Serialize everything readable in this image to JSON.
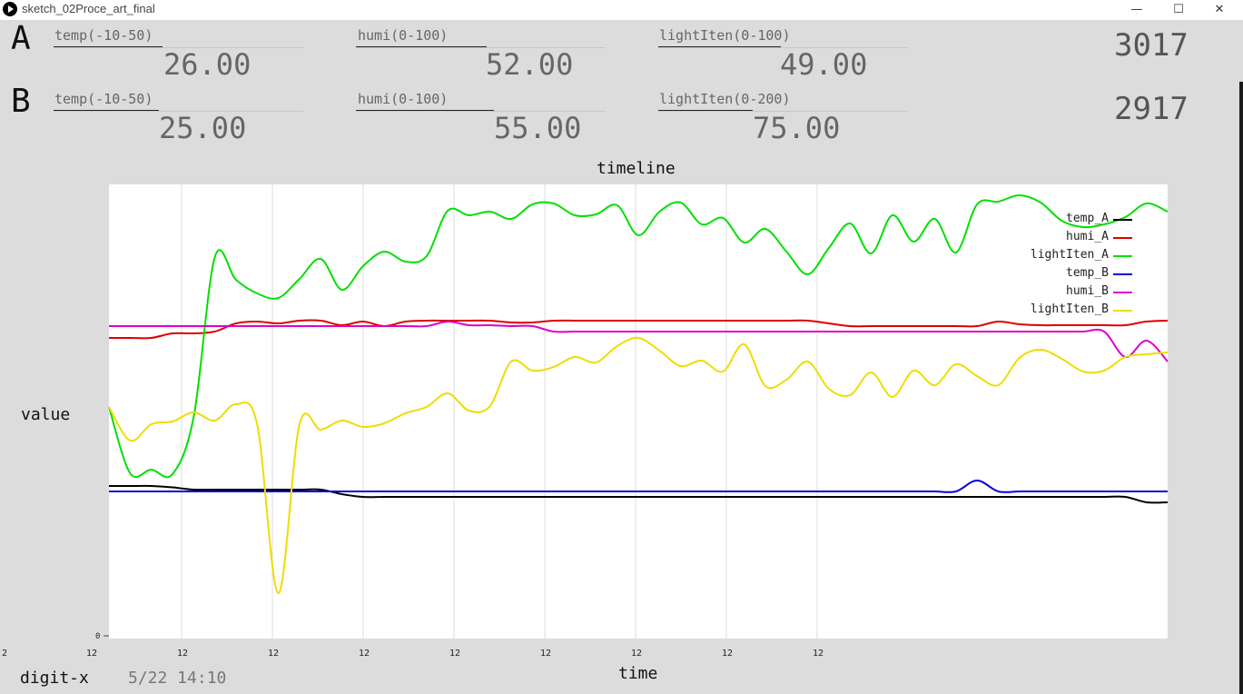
{
  "window": {
    "title": "sketch_02Proce_art_final",
    "minimize": "—",
    "maximize": "☐",
    "close": "✕"
  },
  "stations": [
    {
      "name": "A",
      "counter": "3017",
      "readings": [
        {
          "label": "temp(-10-50)",
          "value": "26.00"
        },
        {
          "label": "humi(0-100)",
          "value": "52.00"
        },
        {
          "label": "lightIten(0-100)",
          "value": "49.00"
        }
      ]
    },
    {
      "name": "B",
      "counter": "2917",
      "readings": [
        {
          "label": "temp(-10-50)",
          "value": "25.00"
        },
        {
          "label": "humi(0-100)",
          "value": "55.00"
        },
        {
          "label": "lightIten(0-200)",
          "value": "75.00"
        }
      ]
    }
  ],
  "footer": {
    "brand": "digit-x",
    "datetime": "5/22 14:10"
  },
  "chart_data": {
    "type": "line",
    "title": "timeline",
    "xlabel": "time",
    "ylabel": "value",
    "y_tick_label": "0",
    "x_tick_labels": [
      "2",
      "12",
      "12",
      "12",
      "12",
      "12",
      "12",
      "12",
      "12",
      "12"
    ],
    "ylim": [
      0,
      100
    ],
    "grid": "vertical",
    "legend_position": "top-right",
    "x": [
      0,
      2,
      4,
      6,
      8,
      10,
      12,
      14,
      16,
      18,
      20,
      22,
      24,
      26,
      28,
      30,
      32,
      34,
      36,
      38,
      40,
      42,
      44,
      46,
      48,
      50,
      52,
      54,
      56,
      58,
      60,
      62,
      64,
      66,
      68,
      70,
      72,
      74,
      76,
      78,
      80,
      82,
      84,
      86,
      88,
      90,
      92,
      94,
      96,
      98,
      100
    ],
    "series": [
      {
        "name": "temp_A",
        "color": "#000000",
        "values": [
          33.6,
          33.6,
          33.6,
          33.3,
          32.8,
          32.8,
          32.8,
          32.8,
          32.8,
          32.8,
          32.8,
          31.8,
          31.2,
          31.2,
          31.2,
          31.2,
          31.2,
          31.2,
          31.2,
          31.2,
          31.2,
          31.2,
          31.2,
          31.2,
          31.2,
          31.2,
          31.2,
          31.2,
          31.2,
          31.2,
          31.2,
          31.2,
          31.2,
          31.2,
          31.2,
          31.2,
          31.2,
          31.2,
          31.2,
          31.2,
          31.2,
          31.2,
          31.2,
          31.2,
          31.2,
          31.2,
          31.2,
          31.2,
          31.2,
          30.0,
          30.0
        ]
      },
      {
        "name": "humi_A",
        "color": "#dd0000",
        "values": [
          66.2,
          66.2,
          66.2,
          67.2,
          67.2,
          67.6,
          69.4,
          69.8,
          69.4,
          70.0,
          70.0,
          69.0,
          69.8,
          68.8,
          69.8,
          70.0,
          70.0,
          70.0,
          70.0,
          69.6,
          69.6,
          70.0,
          70.0,
          70.0,
          70.0,
          70.0,
          70.0,
          70.0,
          70.0,
          70.0,
          70.0,
          70.0,
          70.0,
          70.0,
          69.4,
          68.8,
          68.8,
          68.8,
          68.8,
          68.8,
          68.8,
          68.8,
          69.8,
          69.2,
          69.0,
          69.0,
          69.0,
          69.0,
          69.0,
          69.8,
          70.0
        ]
      },
      {
        "name": "lightIten_A",
        "color": "#00e000",
        "values": [
          51.0,
          36.4,
          37.2,
          36.2,
          48.8,
          84.0,
          79.0,
          76.0,
          75.0,
          79.2,
          83.6,
          76.8,
          82.0,
          85.2,
          83.0,
          84.2,
          94.2,
          93.2,
          94.0,
          92.4,
          95.6,
          95.8,
          93.2,
          93.4,
          95.4,
          88.8,
          94.0,
          96.0,
          91.2,
          92.6,
          87.2,
          90.2,
          85.2,
          80.2,
          86.0,
          91.4,
          84.8,
          93.2,
          87.4,
          92.4,
          85.0,
          95.6,
          96.2,
          97.6,
          96.0,
          92.0,
          90.6,
          91.2,
          92.8,
          95.8,
          94.0
        ]
      },
      {
        "name": "temp_B",
        "color": "#0000dd",
        "values": [
          32.4,
          32.4,
          32.4,
          32.4,
          32.4,
          32.4,
          32.4,
          32.4,
          32.4,
          32.4,
          32.4,
          32.4,
          32.4,
          32.4,
          32.4,
          32.4,
          32.4,
          32.4,
          32.4,
          32.4,
          32.4,
          32.4,
          32.4,
          32.4,
          32.4,
          32.4,
          32.4,
          32.4,
          32.4,
          32.4,
          32.4,
          32.4,
          32.4,
          32.4,
          32.4,
          32.4,
          32.4,
          32.4,
          32.4,
          32.4,
          32.4,
          34.8,
          32.4,
          32.4,
          32.4,
          32.4,
          32.4,
          32.4,
          32.4,
          32.4,
          32.4
        ]
      },
      {
        "name": "humi_B",
        "color": "#dd00cc",
        "values": [
          68.8,
          68.8,
          68.8,
          68.8,
          68.8,
          68.8,
          68.8,
          68.8,
          68.8,
          68.8,
          68.8,
          68.8,
          68.8,
          68.8,
          68.8,
          68.8,
          69.8,
          69.0,
          69.0,
          68.8,
          68.8,
          67.6,
          67.6,
          67.6,
          67.6,
          67.6,
          67.6,
          67.6,
          67.6,
          67.6,
          67.6,
          67.6,
          67.6,
          67.6,
          67.6,
          67.6,
          67.6,
          67.6,
          67.6,
          67.6,
          67.6,
          67.6,
          67.6,
          67.6,
          67.6,
          67.6,
          67.6,
          67.6,
          62.0,
          65.6,
          61.0
        ]
      },
      {
        "name": "lightIten_B",
        "color": "#eedd00",
        "values": [
          51.0,
          43.6,
          47.2,
          47.8,
          49.8,
          48.0,
          51.6,
          47.2,
          10.0,
          47.2,
          46.0,
          48.0,
          46.6,
          47.4,
          49.6,
          51.0,
          54.0,
          50.2,
          51.2,
          61.0,
          59.0,
          59.8,
          62.0,
          60.8,
          64.4,
          66.2,
          63.4,
          60.0,
          61.2,
          58.8,
          64.8,
          55.6,
          57.0,
          61.0,
          55.0,
          53.6,
          58.6,
          53.2,
          59.0,
          55.8,
          60.4,
          57.8,
          55.8,
          61.8,
          63.6,
          61.6,
          58.8,
          59.0,
          62.0,
          62.6,
          63.0
        ]
      }
    ]
  }
}
